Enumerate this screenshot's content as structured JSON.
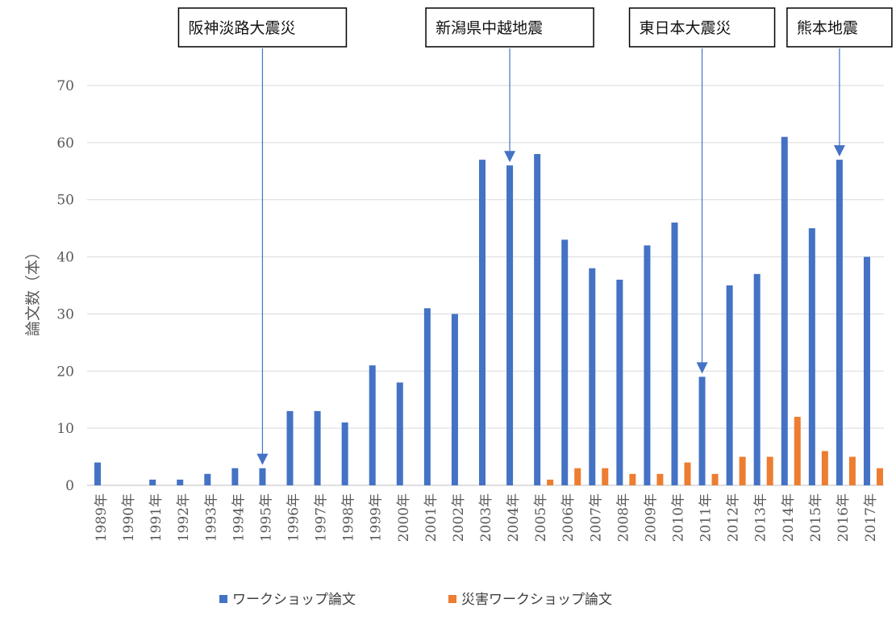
{
  "chart_data": {
    "type": "bar",
    "categories": [
      "1989年",
      "1990年",
      "1991年",
      "1992年",
      "1993年",
      "1994年",
      "1995年",
      "1996年",
      "1997年",
      "1998年",
      "1999年",
      "2000年",
      "2001年",
      "2002年",
      "2003年",
      "2004年",
      "2005年",
      "2006年",
      "2007年",
      "2008年",
      "2009年",
      "2010年",
      "2011年",
      "2012年",
      "2013年",
      "2014年",
      "2015年",
      "2016年",
      "2017年"
    ],
    "series": [
      {
        "name": "ワークショップ論文",
        "color": "#4472C4",
        "values": [
          4,
          0,
          1,
          1,
          2,
          3,
          3,
          13,
          13,
          11,
          21,
          18,
          31,
          30,
          57,
          56,
          58,
          43,
          38,
          36,
          42,
          46,
          19,
          35,
          37,
          61,
          45,
          57,
          40
        ]
      },
      {
        "name": "災害ワークショップ論文",
        "color": "#ED7D31",
        "values": [
          0,
          0,
          0,
          0,
          0,
          0,
          0,
          0,
          0,
          0,
          0,
          0,
          0,
          0,
          0,
          0,
          1,
          3,
          3,
          2,
          2,
          4,
          2,
          5,
          5,
          12,
          6,
          5,
          3
        ]
      }
    ],
    "ylabel": "論文数（本）",
    "ylim": [
      0,
      70
    ],
    "yticks": [
      0,
      10,
      20,
      30,
      40,
      50,
      60,
      70
    ],
    "grid": true,
    "legend_position": "bottom",
    "annotations": [
      {
        "text": "阪神淡路大震災",
        "category": "1995年",
        "value": 3
      },
      {
        "text": "新潟県中越地震",
        "category": "2004年",
        "value": 56
      },
      {
        "text": "東日本大震災",
        "category": "2011年",
        "value": 19
      },
      {
        "text": "熊本地震",
        "category": "2016年",
        "value": 57
      }
    ]
  }
}
